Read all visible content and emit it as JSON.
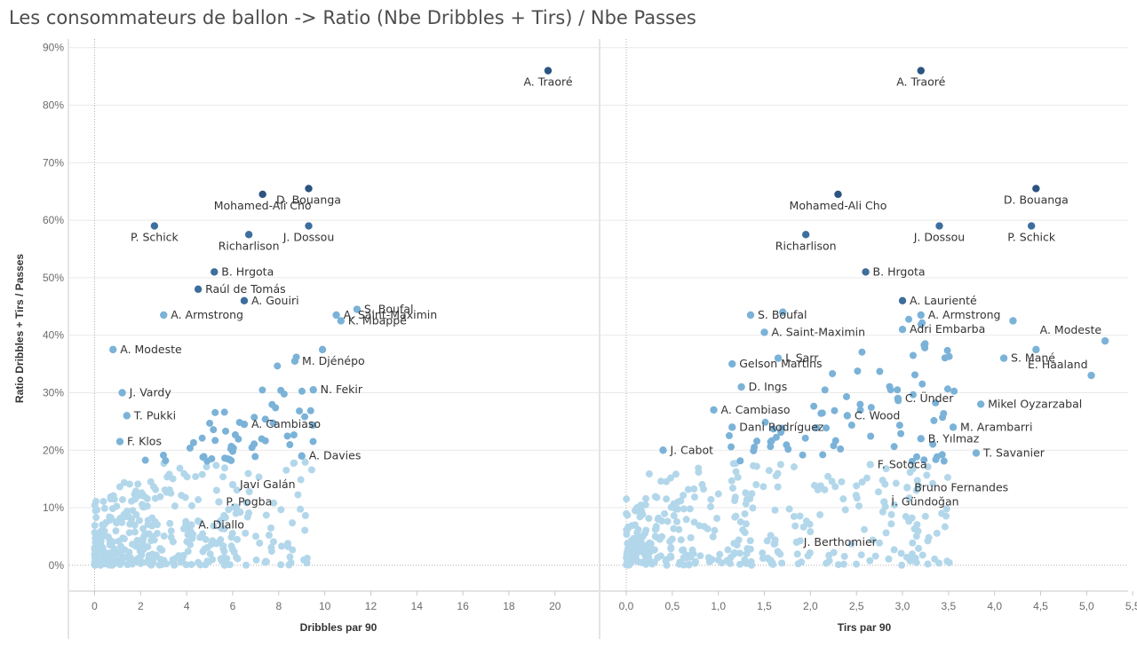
{
  "title": "Les consommateurs de ballon -> Ratio (Nbe Dribbles + Tirs) / Nbe Passes",
  "colors": {
    "light": "#b3d7ea",
    "mid": "#7bb2d8",
    "dark": "#3d6e9c",
    "darkest": "#2b5480",
    "grid": "#e9e9e9",
    "axis": "#c8c8c8",
    "refline": "#b0b0b0"
  },
  "chart_data": [
    {
      "type": "scatter",
      "title": "Les consommateurs de ballon -> Ratio (Nbe Dribbles + Tirs) / Nbe Passes",
      "xlabel": "Dribbles par 90",
      "ylabel": "Ratio Dribbles + Tirs / Passes",
      "xlim": [
        -1.1,
        21.9
      ],
      "ylim": [
        -4.5,
        91.5
      ],
      "xticks": [
        0,
        2,
        4,
        6,
        8,
        10,
        12,
        14,
        16,
        18,
        20
      ],
      "xtick_labels": [
        "0",
        "2",
        "4",
        "6",
        "8",
        "10",
        "12",
        "14",
        "16",
        "18",
        "20"
      ],
      "yticks": [
        0,
        10,
        20,
        30,
        40,
        50,
        60,
        70,
        80,
        90
      ],
      "ytick_labels": [
        "0%",
        "10%",
        "20%",
        "30%",
        "40%",
        "50%",
        "60%",
        "70%",
        "80%",
        "90%"
      ],
      "grid": true,
      "points": [
        {
          "x": 19.7,
          "y": 86,
          "label": "A. Traoré"
        },
        {
          "x": 7.3,
          "y": 64.5,
          "label": "Mohamed-Ali Cho"
        },
        {
          "x": 9.3,
          "y": 65.5,
          "label": "D. Bouanga"
        },
        {
          "x": 2.6,
          "y": 59,
          "label": "P. Schick"
        },
        {
          "x": 6.7,
          "y": 57.5,
          "label": "Richarlison"
        },
        {
          "x": 9.3,
          "y": 59,
          "label": "J. Dossou"
        },
        {
          "x": 5.2,
          "y": 51,
          "label": "B. Hrgota"
        },
        {
          "x": 4.5,
          "y": 48,
          "label": "Raúl de Tomás"
        },
        {
          "x": 6.5,
          "y": 46,
          "label": "A. Gouiri"
        },
        {
          "x": 3,
          "y": 43.5,
          "label": "A. Armstrong"
        },
        {
          "x": 10.5,
          "y": 43.5,
          "label": "A. Saint-Maximin"
        },
        {
          "x": 11.4,
          "y": 44.5,
          "label": "S. Boufal"
        },
        {
          "x": 10.7,
          "y": 42.5,
          "label": "K. Mbappé"
        },
        {
          "x": 0.8,
          "y": 37.5,
          "label": "A. Modeste"
        },
        {
          "x": 8.7,
          "y": 35.5,
          "label": "M. Djénépo"
        },
        {
          "x": 9.9,
          "y": 37.5,
          "label": ""
        },
        {
          "x": 1.2,
          "y": 30,
          "label": "J. Vardy"
        },
        {
          "x": 9.5,
          "y": 30.5,
          "label": "N. Fekir"
        },
        {
          "x": 1.4,
          "y": 26,
          "label": "T. Pukki"
        },
        {
          "x": 6.5,
          "y": 24.5,
          "label": "A. Cambiaso"
        },
        {
          "x": 1.1,
          "y": 21.5,
          "label": "F. Klos"
        },
        {
          "x": 9,
          "y": 19,
          "label": "A. Davies"
        },
        {
          "x": 6,
          "y": 14,
          "label": "Javi Galán"
        },
        {
          "x": 5.4,
          "y": 11,
          "label": "P. Pogba"
        },
        {
          "x": 4.2,
          "y": 7,
          "label": "A. Diallo"
        }
      ]
    },
    {
      "type": "scatter",
      "xlabel": "Tirs par 90",
      "ylabel": "Ratio Dribbles + Tirs / Passes",
      "xlim": [
        -0.28,
        5.45
      ],
      "ylim": [
        -4.5,
        91.5
      ],
      "xticks": [
        0,
        0.5,
        1,
        1.5,
        2,
        2.5,
        3,
        3.5,
        4,
        4.5,
        5,
        5.5
      ],
      "xtick_labels": [
        "0,0",
        "0,5",
        "1,0",
        "1,5",
        "2,0",
        "2,5",
        "3,0",
        "3,5",
        "4,0",
        "4,5",
        "5,0",
        "5,5"
      ],
      "grid": true,
      "points": [
        {
          "x": 3.2,
          "y": 86,
          "label": "A. Traoré"
        },
        {
          "x": 4.45,
          "y": 65.5,
          "label": "D. Bouanga"
        },
        {
          "x": 2.3,
          "y": 64.5,
          "label": "Mohamed-Ali Cho"
        },
        {
          "x": 3.4,
          "y": 59,
          "label": "J. Dossou"
        },
        {
          "x": 4.4,
          "y": 59,
          "label": "P. Schick"
        },
        {
          "x": 1.95,
          "y": 57.5,
          "label": "Richarlison"
        },
        {
          "x": 2.6,
          "y": 51,
          "label": "B. Hrgota"
        },
        {
          "x": 1.35,
          "y": 43.5,
          "label": "S. Boufal"
        },
        {
          "x": 1.7,
          "y": 44,
          "label": ""
        },
        {
          "x": 3,
          "y": 46,
          "label": "A. Laurienté"
        },
        {
          "x": 3.2,
          "y": 43.5,
          "label": "A. Armstrong"
        },
        {
          "x": 1.5,
          "y": 40.5,
          "label": "A. Saint-Maximin"
        },
        {
          "x": 4.2,
          "y": 42.5,
          "label": ""
        },
        {
          "x": 5.2,
          "y": 39,
          "label": "A. Modeste"
        },
        {
          "x": 3,
          "y": 41,
          "label": "Adri Embarba"
        },
        {
          "x": 1.65,
          "y": 36,
          "label": "I. Sarr"
        },
        {
          "x": 1.15,
          "y": 35,
          "label": "Gelson Martins"
        },
        {
          "x": 4.45,
          "y": 37.5,
          "label": ""
        },
        {
          "x": 4.1,
          "y": 36,
          "label": "S. Mané"
        },
        {
          "x": 5.05,
          "y": 33,
          "label": "E. Haaland"
        },
        {
          "x": 1.25,
          "y": 31,
          "label": "D. Ings"
        },
        {
          "x": 2.95,
          "y": 29,
          "label": "C. Ünder"
        },
        {
          "x": 3.85,
          "y": 28,
          "label": "Mikel Oyzarzabal"
        },
        {
          "x": 0.95,
          "y": 27,
          "label": "A. Cambiaso"
        },
        {
          "x": 2.4,
          "y": 26,
          "label": "C. Wood"
        },
        {
          "x": 1.15,
          "y": 24,
          "label": "Dani Rodríguez"
        },
        {
          "x": 3.55,
          "y": 24,
          "label": "M. Arambarri"
        },
        {
          "x": 0.4,
          "y": 20,
          "label": "J. Cabot"
        },
        {
          "x": 3.2,
          "y": 22,
          "label": "B. Yılmaz"
        },
        {
          "x": 3.8,
          "y": 19.5,
          "label": "T. Savanier"
        },
        {
          "x": 2.65,
          "y": 17.5,
          "label": "F. Sotoca"
        },
        {
          "x": 3.05,
          "y": 13.5,
          "label": "Bruno Fernandes"
        },
        {
          "x": 2.8,
          "y": 11,
          "label": "İ. Gündoğan"
        },
        {
          "x": 1.85,
          "y": 4,
          "label": "J. Berthomier"
        }
      ]
    }
  ]
}
